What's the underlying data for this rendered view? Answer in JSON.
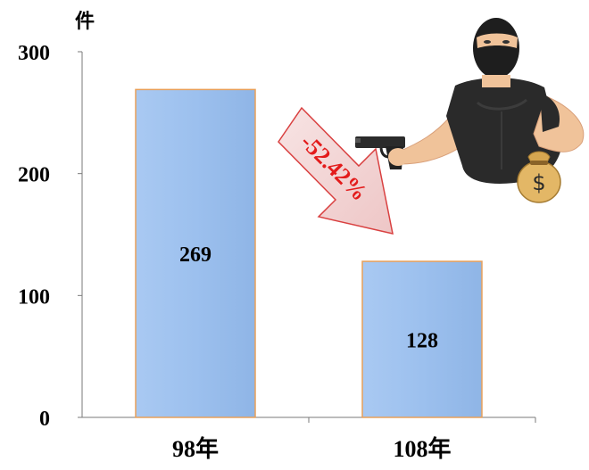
{
  "chart_data": {
    "type": "bar",
    "title": "",
    "xlabel": "",
    "ylabel": "件",
    "categories": [
      "98年",
      "108年"
    ],
    "values": [
      269,
      128
    ],
    "data_labels": [
      "269",
      "128"
    ],
    "ylim": [
      0,
      300
    ],
    "yticks": [
      "0",
      "100",
      "200",
      "300"
    ],
    "grid": false,
    "legend": "none",
    "annotation": {
      "text": "-52.42%",
      "color": "#e31b1b"
    },
    "colors": {
      "bar_fill": "#9cc0ee",
      "bar_edge": "#e8a05a",
      "arrow_fill": "#f2d4d4",
      "arrow_edge": "#d94040"
    }
  },
  "illustration": {
    "name": "masked-robber-with-gun-and-money-bag",
    "bag_symbol": "$"
  }
}
